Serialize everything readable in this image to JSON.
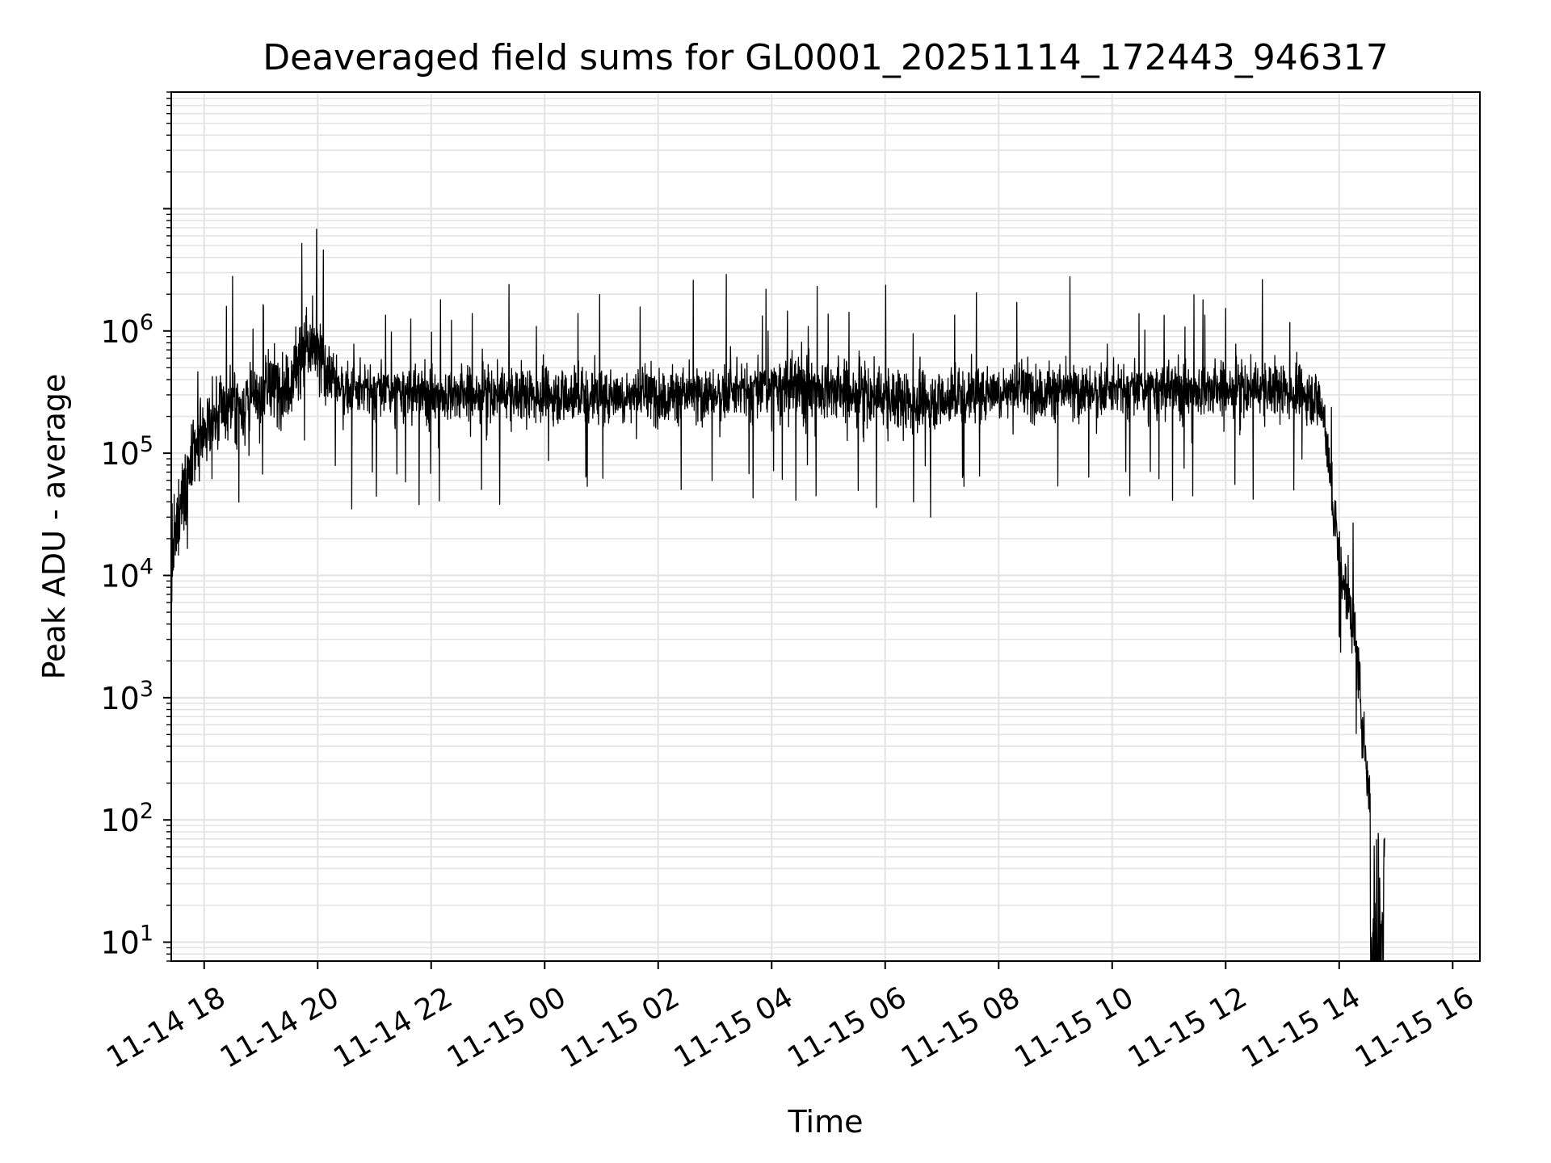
{
  "chart_data": {
    "type": "line",
    "title": "Deaveraged field sums for GL0001_20251114_172443_946317",
    "xlabel": "Time",
    "ylabel": "Peak ADU - average",
    "yscale": "log",
    "ylim": [
      7,
      90000000
    ],
    "xlim_hours": [
      17.42,
      40.48
    ],
    "grid": true,
    "line_color": "#000000",
    "grid_color": "#e3e3e3",
    "x_ticks": [
      {
        "label": "11-14 18",
        "hour": 18
      },
      {
        "label": "11-14 20",
        "hour": 20
      },
      {
        "label": "11-14 22",
        "hour": 22
      },
      {
        "label": "11-15 00",
        "hour": 24
      },
      {
        "label": "11-15 02",
        "hour": 26
      },
      {
        "label": "11-15 04",
        "hour": 28
      },
      {
        "label": "11-15 06",
        "hour": 30
      },
      {
        "label": "11-15 08",
        "hour": 32
      },
      {
        "label": "11-15 10",
        "hour": 34
      },
      {
        "label": "11-15 12",
        "hour": 36
      },
      {
        "label": "11-15 14",
        "hour": 38
      },
      {
        "label": "11-15 16",
        "hour": 40
      }
    ],
    "y_ticks": [
      {
        "base": "10",
        "exp": "1",
        "value": 10
      },
      {
        "base": "10",
        "exp": "2",
        "value": 100
      },
      {
        "base": "10",
        "exp": "3",
        "value": 1000
      },
      {
        "base": "10",
        "exp": "4",
        "value": 10000
      },
      {
        "base": "10",
        "exp": "5",
        "value": 100000
      },
      {
        "base": "10",
        "exp": "6",
        "value": 1000000
      }
    ],
    "series": [
      {
        "name": "field sums",
        "hours": [
          17.42,
          17.5,
          17.6,
          17.7,
          17.85,
          18.0,
          18.2,
          18.4,
          18.6,
          18.8,
          19.0,
          19.2,
          19.4,
          19.6,
          19.75,
          19.9,
          20.05,
          20.2,
          20.4,
          20.6,
          21.0,
          22.0,
          23.0,
          24.0,
          25.0,
          26.0,
          27.0,
          28.0,
          28.5,
          29.0,
          29.5,
          30.0,
          30.5,
          31.0,
          32.0,
          33.0,
          34.0,
          35.0,
          36.0,
          37.0,
          37.5,
          37.7,
          37.8,
          37.9,
          38.0,
          38.1,
          38.2,
          38.3,
          38.4,
          38.5,
          38.6,
          38.7,
          38.75,
          38.8
        ],
        "baseline": [
          10000,
          20000,
          40000,
          60000,
          100000,
          150000,
          200000,
          250000,
          250000,
          250000,
          300000,
          350000,
          350000,
          450000,
          700000,
          700000,
          600000,
          450000,
          350000,
          320000,
          320000,
          300000,
          300000,
          300000,
          300000,
          300000,
          300000,
          330000,
          350000,
          330000,
          300000,
          280000,
          260000,
          280000,
          330000,
          320000,
          320000,
          330000,
          330000,
          330000,
          300000,
          250000,
          90000,
          30000,
          15000,
          8000,
          5000,
          2500,
          600,
          200,
          100,
          50,
          20,
          7
        ],
        "spread": [
          0.55,
          0.55,
          0.5,
          0.45,
          0.45,
          0.45,
          0.45,
          0.5,
          0.5,
          0.5,
          0.45,
          0.45,
          0.45,
          0.5,
          0.55,
          0.55,
          0.45,
          0.4,
          0.35,
          0.35,
          0.35,
          0.35,
          0.35,
          0.35,
          0.35,
          0.35,
          0.35,
          0.4,
          0.45,
          0.4,
          0.4,
          0.4,
          0.4,
          0.35,
          0.35,
          0.35,
          0.35,
          0.35,
          0.35,
          0.35,
          0.35,
          0.35,
          0.3,
          0.35,
          0.35,
          0.4,
          0.4,
          0.4,
          0.4,
          0.4,
          0.4,
          0.4,
          0.4,
          0.3
        ],
        "notable_peaks": [
          {
            "hour": 18.5,
            "value": 2800000
          },
          {
            "hour": 19.72,
            "value": 5200000
          },
          {
            "hour": 20.1,
            "value": 4600000
          },
          {
            "hour": 27.2,
            "value": 2900000
          },
          {
            "hour": 27.9,
            "value": 2200000
          },
          {
            "hour": 35.6,
            "value": 1800000
          }
        ],
        "notable_dips": [
          {
            "hour": 20.6,
            "value": 35000
          },
          {
            "hour": 30.5,
            "value": 40000
          },
          {
            "hour": 30.8,
            "value": 30000
          },
          {
            "hour": 37.2,
            "value": 50000
          }
        ]
      }
    ]
  }
}
